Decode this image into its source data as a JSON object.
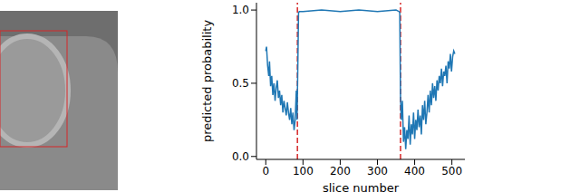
{
  "chart_data": {
    "type": "line",
    "x_label": "slice number",
    "y_label": "predicted probability",
    "xlim": [
      -25,
      535
    ],
    "xticks": [
      0,
      100,
      200,
      300,
      400,
      500
    ],
    "ylim": [
      -0.02,
      1.05
    ],
    "yticks": [
      {
        "value": 0,
        "label": "0.0"
      },
      {
        "value": 0.5,
        "label": "0.5"
      },
      {
        "value": 1,
        "label": "1.0"
      }
    ],
    "grid": false,
    "color": "#1f77b4",
    "x": [
      0,
      2,
      5,
      8,
      10,
      13,
      16,
      19,
      22,
      25,
      28,
      31,
      34,
      37,
      40,
      43,
      46,
      49,
      52,
      55,
      58,
      61,
      64,
      67,
      70,
      73,
      76,
      79,
      82,
      84,
      86,
      88,
      90,
      100,
      150,
      200,
      250,
      300,
      350,
      358,
      360,
      362,
      364,
      367,
      370,
      373,
      376,
      379,
      382,
      385,
      388,
      391,
      394,
      397,
      400,
      403,
      406,
      409,
      412,
      415,
      418,
      421,
      424,
      427,
      430,
      433,
      436,
      439,
      442,
      445,
      448,
      451,
      454,
      457,
      460,
      463,
      466,
      469,
      472,
      475,
      478,
      481,
      484,
      487,
      490,
      493,
      496,
      499,
      502,
      505,
      508
    ],
    "values": [
      0.72,
      0.75,
      0.62,
      0.55,
      0.65,
      0.48,
      0.55,
      0.42,
      0.5,
      0.38,
      0.47,
      0.52,
      0.4,
      0.45,
      0.35,
      0.42,
      0.3,
      0.38,
      0.33,
      0.28,
      0.37,
      0.3,
      0.25,
      0.33,
      0.22,
      0.3,
      0.18,
      0.25,
      0.45,
      0.25,
      0.6,
      0.98,
      0.99,
      0.99,
      1.0,
      0.99,
      1.0,
      0.99,
      1.0,
      0.99,
      0.98,
      0.4,
      0.25,
      0.38,
      0.1,
      0.2,
      0.05,
      0.18,
      0.12,
      0.28,
      0.08,
      0.22,
      0.15,
      0.3,
      0.12,
      0.25,
      0.18,
      0.32,
      0.2,
      0.28,
      0.15,
      0.35,
      0.25,
      0.38,
      0.22,
      0.3,
      0.42,
      0.3,
      0.45,
      0.35,
      0.5,
      0.4,
      0.48,
      0.38,
      0.52,
      0.45,
      0.55,
      0.5,
      0.6,
      0.48,
      0.58,
      0.55,
      0.62,
      0.5,
      0.65,
      0.6,
      0.7,
      0.58,
      0.68,
      0.72,
      0.7
    ],
    "vlines": {
      "x": [
        85,
        362
      ],
      "color": "#d62728",
      "line_style": "dashed"
    }
  }
}
